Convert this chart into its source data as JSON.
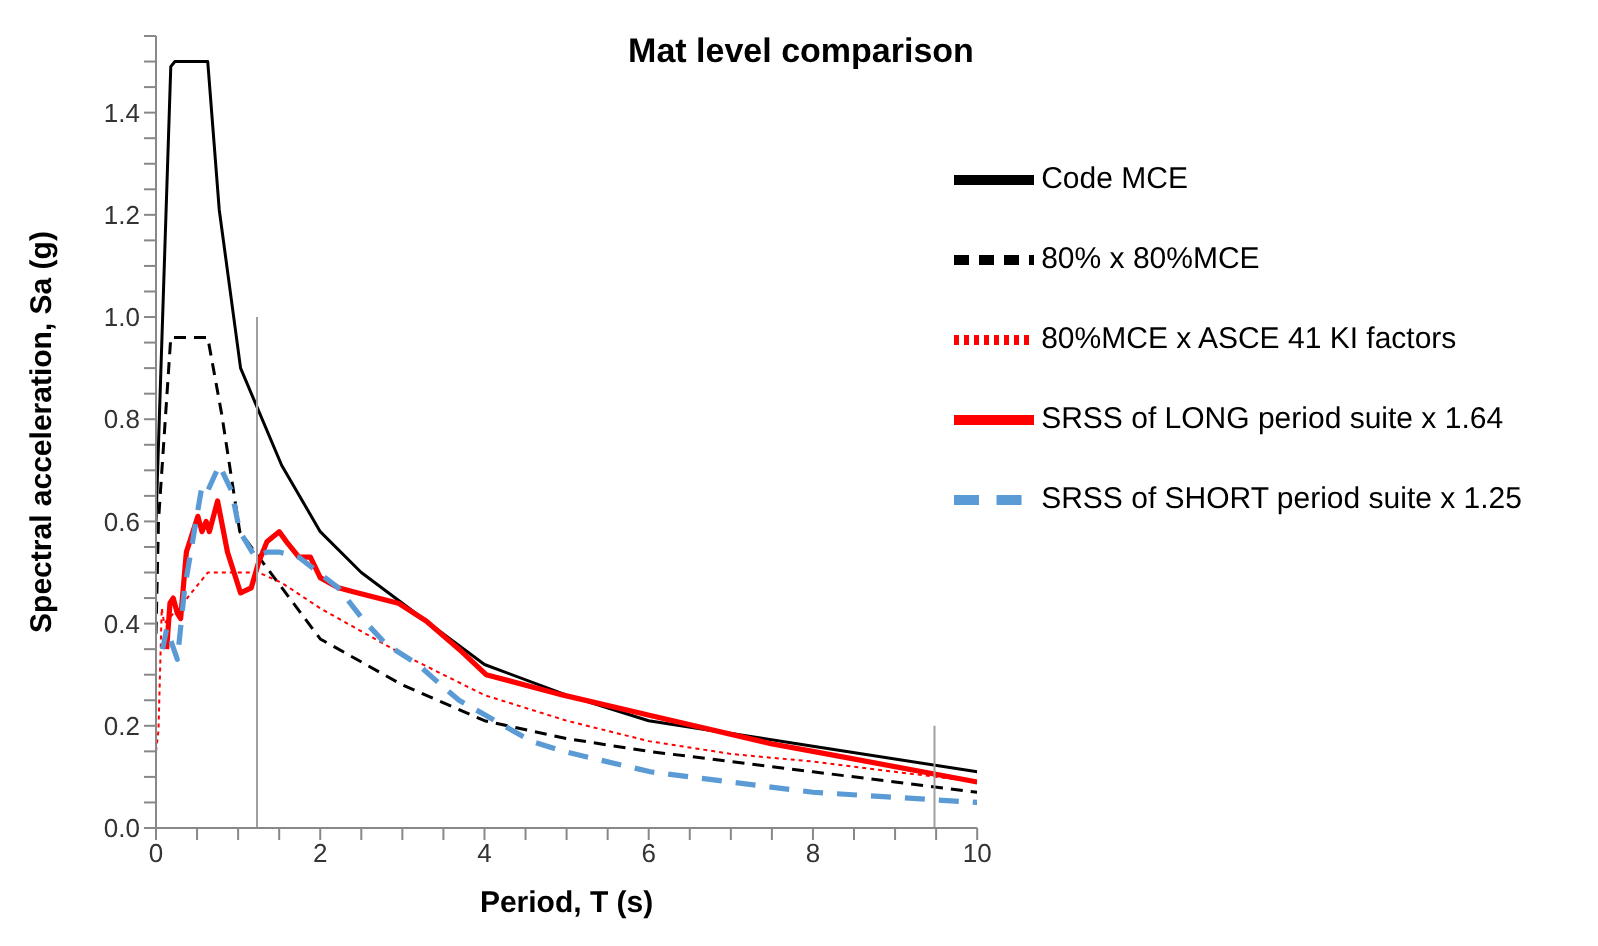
{
  "chart_data": {
    "type": "line",
    "title": "Mat level comparison",
    "xlabel": "Period, T  (s)",
    "ylabel": "Spectral acceleration, Sa  (g)",
    "xlim": [
      0,
      10
    ],
    "ylim": [
      0,
      1.55
    ],
    "xticks": [
      0,
      {
        "value": 0.5,
        "label": null
      },
      {
        "value": 1,
        "label": null
      },
      {
        "value": 1.5,
        "label": null
      },
      2,
      {
        "value": 2.5,
        "label": null
      },
      {
        "value": 3,
        "label": null
      },
      {
        "value": 3.5,
        "label": null
      },
      4,
      {
        "value": 4.5,
        "label": null
      },
      {
        "value": 5,
        "label": null
      },
      {
        "value": 5.5,
        "label": null
      },
      6,
      {
        "value": 6.5,
        "label": null
      },
      {
        "value": 7,
        "label": null
      },
      {
        "value": 7.5,
        "label": null
      },
      8,
      {
        "value": 8.5,
        "label": null
      },
      {
        "value": 9,
        "label": null
      },
      {
        "value": 9.5,
        "label": null
      },
      10
    ],
    "yticks": [
      {
        "value": 0,
        "label": "0.0"
      },
      {
        "value": 0.05,
        "label": null
      },
      {
        "value": 0.1,
        "label": null
      },
      {
        "value": 0.15,
        "label": null
      },
      {
        "value": 0.2,
        "label": "0.2"
      },
      {
        "value": 0.25,
        "label": null
      },
      {
        "value": 0.3,
        "label": null
      },
      {
        "value": 0.35,
        "label": null
      },
      {
        "value": 0.4,
        "label": "0.4"
      },
      {
        "value": 0.45,
        "label": null
      },
      {
        "value": 0.5,
        "label": null
      },
      {
        "value": 0.55,
        "label": null
      },
      {
        "value": 0.6,
        "label": "0.6"
      },
      {
        "value": 0.65,
        "label": null
      },
      {
        "value": 0.7,
        "label": null
      },
      {
        "value": 0.75,
        "label": null
      },
      {
        "value": 0.8,
        "label": "0.8"
      },
      {
        "value": 0.85,
        "label": null
      },
      {
        "value": 0.9,
        "label": null
      },
      {
        "value": 0.95,
        "label": null
      },
      {
        "value": 1,
        "label": "1.0"
      },
      {
        "value": 1.05,
        "label": null
      },
      {
        "value": 1.1,
        "label": null
      },
      {
        "value": 1.15,
        "label": null
      },
      {
        "value": 1.2,
        "label": "1.2"
      },
      {
        "value": 1.25,
        "label": null
      },
      {
        "value": 1.3,
        "label": null
      },
      {
        "value": 1.35,
        "label": null
      },
      {
        "value": 1.4,
        "label": "1.4"
      },
      {
        "value": 1.45,
        "label": null
      },
      {
        "value": 1.5,
        "label": null
      },
      {
        "value": 1.55,
        "label": null
      }
    ],
    "grid": false,
    "legend": "top right",
    "marker": "none",
    "series": [
      {
        "name": "Code MCE",
        "color": "#000000",
        "line_style": "solid",
        "x": [
          0,
          0.03,
          0.18,
          0.23,
          0.63,
          0.77,
          1.03,
          1.53,
          2.0,
          2.5,
          3.0,
          3.5,
          4.0,
          5.0,
          6.0,
          8.0,
          10.0
        ],
        "values": [
          0.6,
          0.75,
          1.49,
          1.5,
          1.5,
          1.21,
          0.9,
          0.71,
          0.58,
          0.5,
          0.44,
          0.38,
          0.32,
          0.26,
          0.21,
          0.16,
          0.11
        ]
      },
      {
        "name": "80% x 80%MCE",
        "color": "#000000",
        "line_style": "dashed",
        "x": [
          0,
          0.03,
          0.18,
          0.63,
          0.8,
          1.02,
          2.0,
          3.0,
          4.0,
          5.0,
          6.0,
          7.0,
          8.0,
          9.0,
          10.0
        ],
        "values": [
          0.38,
          0.6,
          0.96,
          0.96,
          0.81,
          0.58,
          0.37,
          0.28,
          0.21,
          0.175,
          0.15,
          0.13,
          0.11,
          0.09,
          0.07
        ]
      },
      {
        "name": "80%MCE x ASCE 41 KI factors",
        "color": "#ff0000",
        "line_style": "dotted",
        "x": [
          0,
          0.03,
          0.07,
          0.1,
          0.38,
          0.63,
          1.0,
          1.25,
          1.53,
          2.0,
          3.0,
          4.0,
          5.0,
          6.0,
          7.0,
          8.0,
          9.0,
          10.0
        ],
        "values": [
          0.15,
          0.19,
          0.43,
          0.4,
          0.45,
          0.5,
          0.5,
          0.5,
          0.48,
          0.43,
          0.34,
          0.26,
          0.21,
          0.17,
          0.145,
          0.13,
          0.11,
          0.09
        ]
      },
      {
        "name": "SRSS of LONG period suite x 1.64",
        "color": "#ff0000",
        "line_style": "solid",
        "x": [
          0.13,
          0.17,
          0.21,
          0.26,
          0.3,
          0.37,
          0.51,
          0.56,
          0.61,
          0.65,
          0.75,
          0.87,
          1.03,
          1.16,
          1.25,
          1.35,
          1.5,
          1.59,
          1.74,
          1.88,
          2.0,
          2.22,
          2.46,
          2.7,
          2.95,
          3.29,
          3.69,
          4.02,
          4.96,
          6.02,
          7.49,
          8.0,
          10.0
        ],
        "values": [
          0.35,
          0.44,
          0.45,
          0.42,
          0.41,
          0.54,
          0.61,
          0.58,
          0.6,
          0.58,
          0.64,
          0.54,
          0.46,
          0.47,
          0.52,
          0.56,
          0.58,
          0.56,
          0.53,
          0.53,
          0.49,
          0.47,
          0.46,
          0.45,
          0.44,
          0.405,
          0.35,
          0.3,
          0.26,
          0.22,
          0.165,
          0.15,
          0.09
        ]
      },
      {
        "name": "SRSS of SHORT period suite x 1.25",
        "color": "#5b9bd5",
        "line_style": "dashed",
        "x": [
          0.08,
          0.13,
          0.26,
          0.35,
          0.56,
          0.63,
          0.77,
          0.92,
          1.02,
          1.21,
          1.35,
          1.5,
          1.74,
          1.98,
          2.22,
          2.51,
          2.8,
          3.19,
          3.4,
          3.69,
          4.02,
          4.57,
          4.96,
          6.02,
          7.49,
          8.0,
          10.0
        ],
        "values": [
          0.35,
          0.39,
          0.33,
          0.47,
          0.67,
          0.66,
          0.71,
          0.66,
          0.58,
          0.53,
          0.54,
          0.54,
          0.53,
          0.5,
          0.47,
          0.41,
          0.36,
          0.32,
          0.29,
          0.25,
          0.22,
          0.17,
          0.15,
          0.11,
          0.08,
          0.07,
          0.05
        ]
      },
      {
        "color": "#a0a0a0",
        "line_style": "solid",
        "x": [
          1.23,
          1.23
        ],
        "values": [
          0,
          1.0
        ]
      },
      {
        "color": "#a0a0a0",
        "line_style": "solid",
        "x": [
          9.48,
          9.48
        ],
        "values": [
          0,
          0.2
        ]
      }
    ]
  }
}
